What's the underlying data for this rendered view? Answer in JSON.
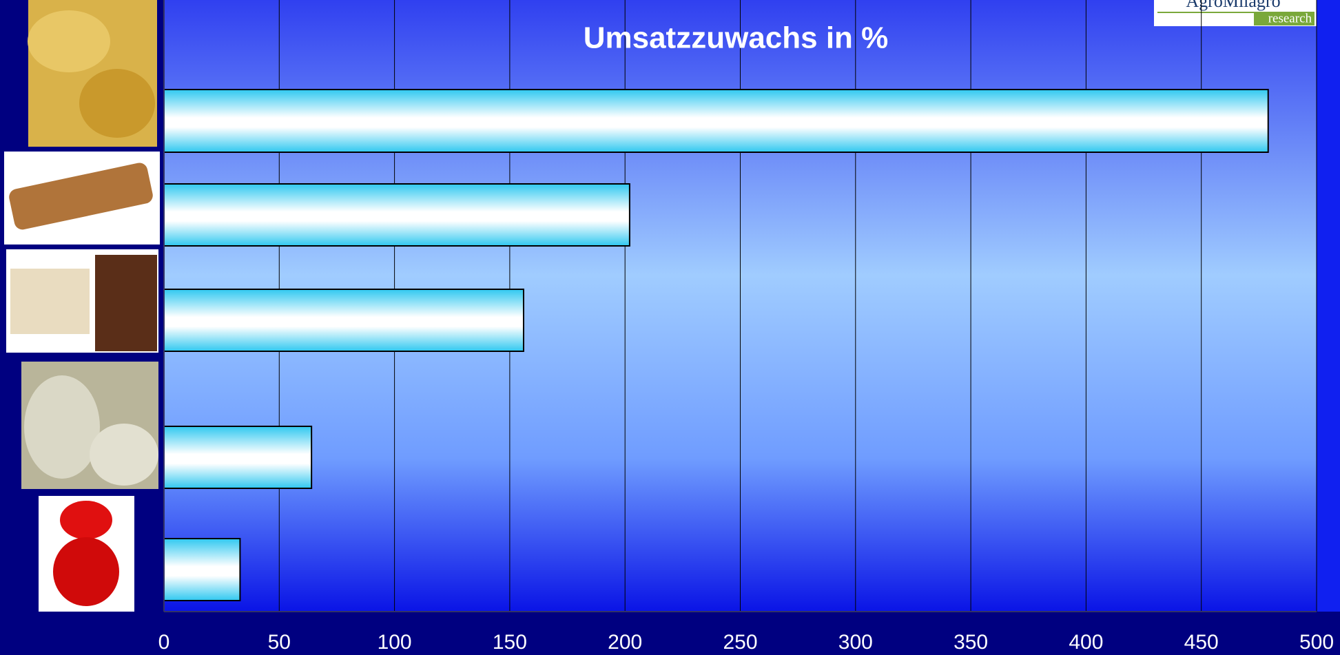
{
  "chart_data": {
    "type": "bar",
    "orientation": "horizontal",
    "title": "Umsatzzuwachs in %",
    "logo": {
      "name": "AgroMilagro",
      "subtitle": "research"
    },
    "categories": [
      null,
      null,
      null,
      null,
      null
    ],
    "values": [
      479,
      202,
      156,
      64,
      33
    ],
    "color": "#33ccf0",
    "xlim": [
      0,
      500
    ],
    "xticks": [
      0,
      50,
      100,
      150,
      200,
      250,
      300,
      350,
      400,
      450,
      500
    ],
    "grid": true
  }
}
